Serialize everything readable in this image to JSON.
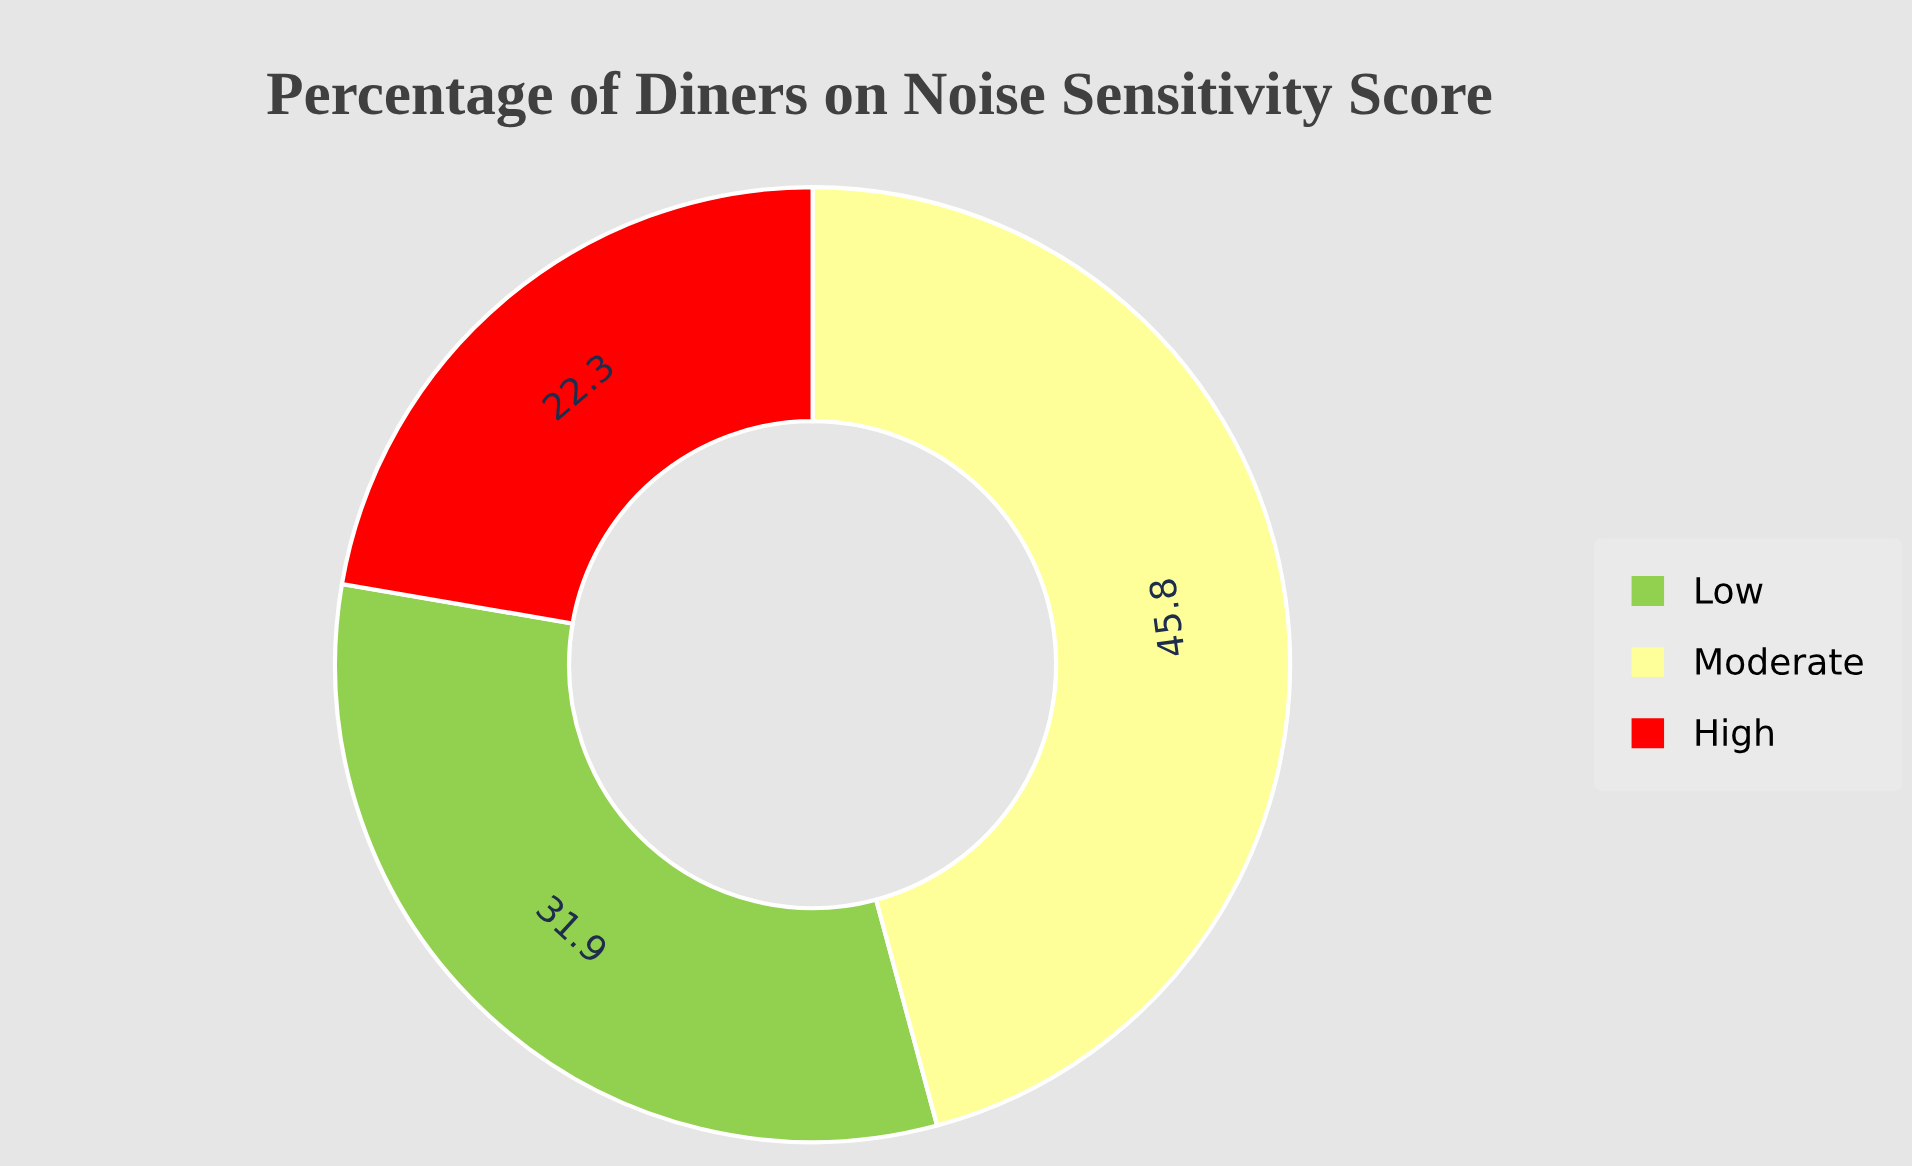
{
  "chart_data": {
    "type": "donut",
    "title": "Percentage of Diners on Noise Sensitivity Score",
    "categories": [
      "Low",
      "Moderate",
      "High"
    ],
    "values": [
      31.9,
      45.8,
      22.3
    ],
    "colors": [
      "#92d050",
      "#ffff99",
      "#ff0000"
    ],
    "data_labels": true,
    "legend": "right"
  }
}
